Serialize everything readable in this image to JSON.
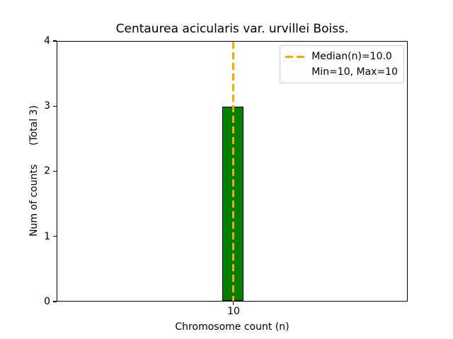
{
  "chart_data": {
    "type": "bar",
    "title": "Centaurea acicularis var. urvillei Boiss.",
    "xlabel": "Chromosome count (n)",
    "ylabel": "Num of counts      (Total 3)",
    "total_counts": 3,
    "categories": [
      "10"
    ],
    "values": [
      3
    ],
    "xticks": [
      "10"
    ],
    "yticks": [
      0,
      1,
      2,
      3,
      4
    ],
    "ylim": [
      0,
      4
    ],
    "grid": false,
    "bar_color": "#008000",
    "bar_edge_color": "#000000",
    "median": {
      "value": 10.0,
      "min": 10,
      "max": 10,
      "line_color": "#ffa500",
      "line_style": "dashed"
    },
    "legend": {
      "position": "upper right",
      "entries": [
        {
          "label": "Median(n)=10.0",
          "sample": "orange-dashed-line"
        },
        {
          "label": "Min=10, Max=10",
          "sample": "none"
        }
      ]
    }
  }
}
